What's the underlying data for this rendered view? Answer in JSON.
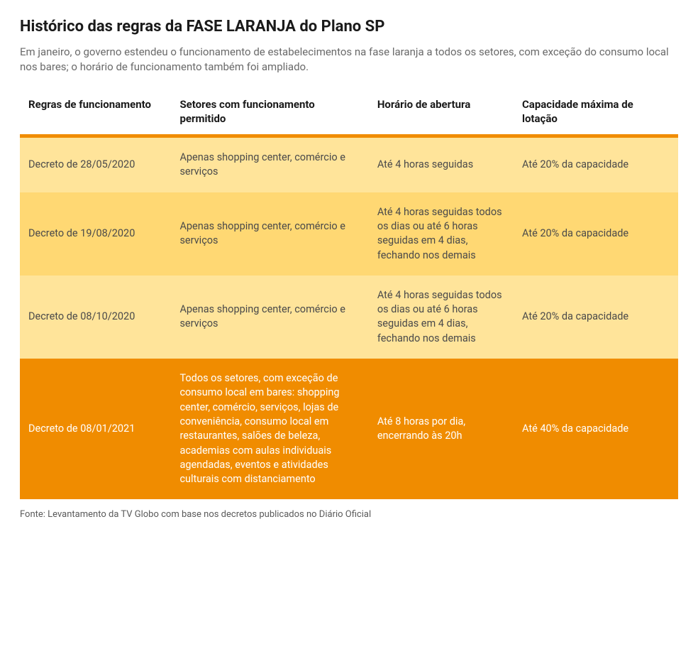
{
  "title": "Histórico das regras da FASE LARANJA do Plano SP",
  "subtitle": "Em janeiro, o governo estendeu o funcionamento de estabelecimentos na fase laranja a todos os setores, com exceção do consumo local nos bares; o horário de funcionamento também foi ampliado.",
  "columns": [
    "Regras de funcionamento",
    "Setores com funcionamento permitido",
    "Horário de abertura",
    "Capacidade máxima de lotação"
  ],
  "accent_color": "#f08c00",
  "rows": [
    {
      "bg": "#ffe49a",
      "text_color": "#4a4a4a",
      "cells": [
        "Decreto de 28/05/2020",
        "Apenas shopping center, comércio e serviços",
        "Até 4 horas seguidas",
        "Até 20% da capacidade"
      ]
    },
    {
      "bg": "#ffd873",
      "text_color": "#4a4a4a",
      "cells": [
        "Decreto de 19/08/2020",
        "Apenas shopping center, comércio e serviços",
        "Até 4 horas seguidas todos os dias ou até 6 horas seguidas em 4 dias, fechando nos demais",
        "Até 20% da capacidade"
      ]
    },
    {
      "bg": "#ffe49a",
      "text_color": "#4a4a4a",
      "cells": [
        "Decreto de 08/10/2020",
        "Apenas shopping center, comércio e serviços",
        "Até 4 horas seguidas todos os dias ou até 6 horas seguidas em 4 dias, fechando nos demais",
        "Até 20% da capacidade"
      ]
    },
    {
      "bg": "#f08c00",
      "text_color": "#ffffff",
      "cells": [
        "Decreto de 08/01/2021",
        "Todos os setores, com exceção de consumo local em bares: shopping center, comércio, serviços, lojas de conveniência, consumo local em restaurantes, salões de beleza, academias com aulas individuais agendadas, eventos e atividades culturais com distanciamento",
        "Até 8 horas por dia, encerrando às 20h",
        "Até 40% da capacidade"
      ]
    }
  ],
  "footer": "Fonte: Levantamento da TV Globo com base nos decretos publicados no Diário Oficial"
}
